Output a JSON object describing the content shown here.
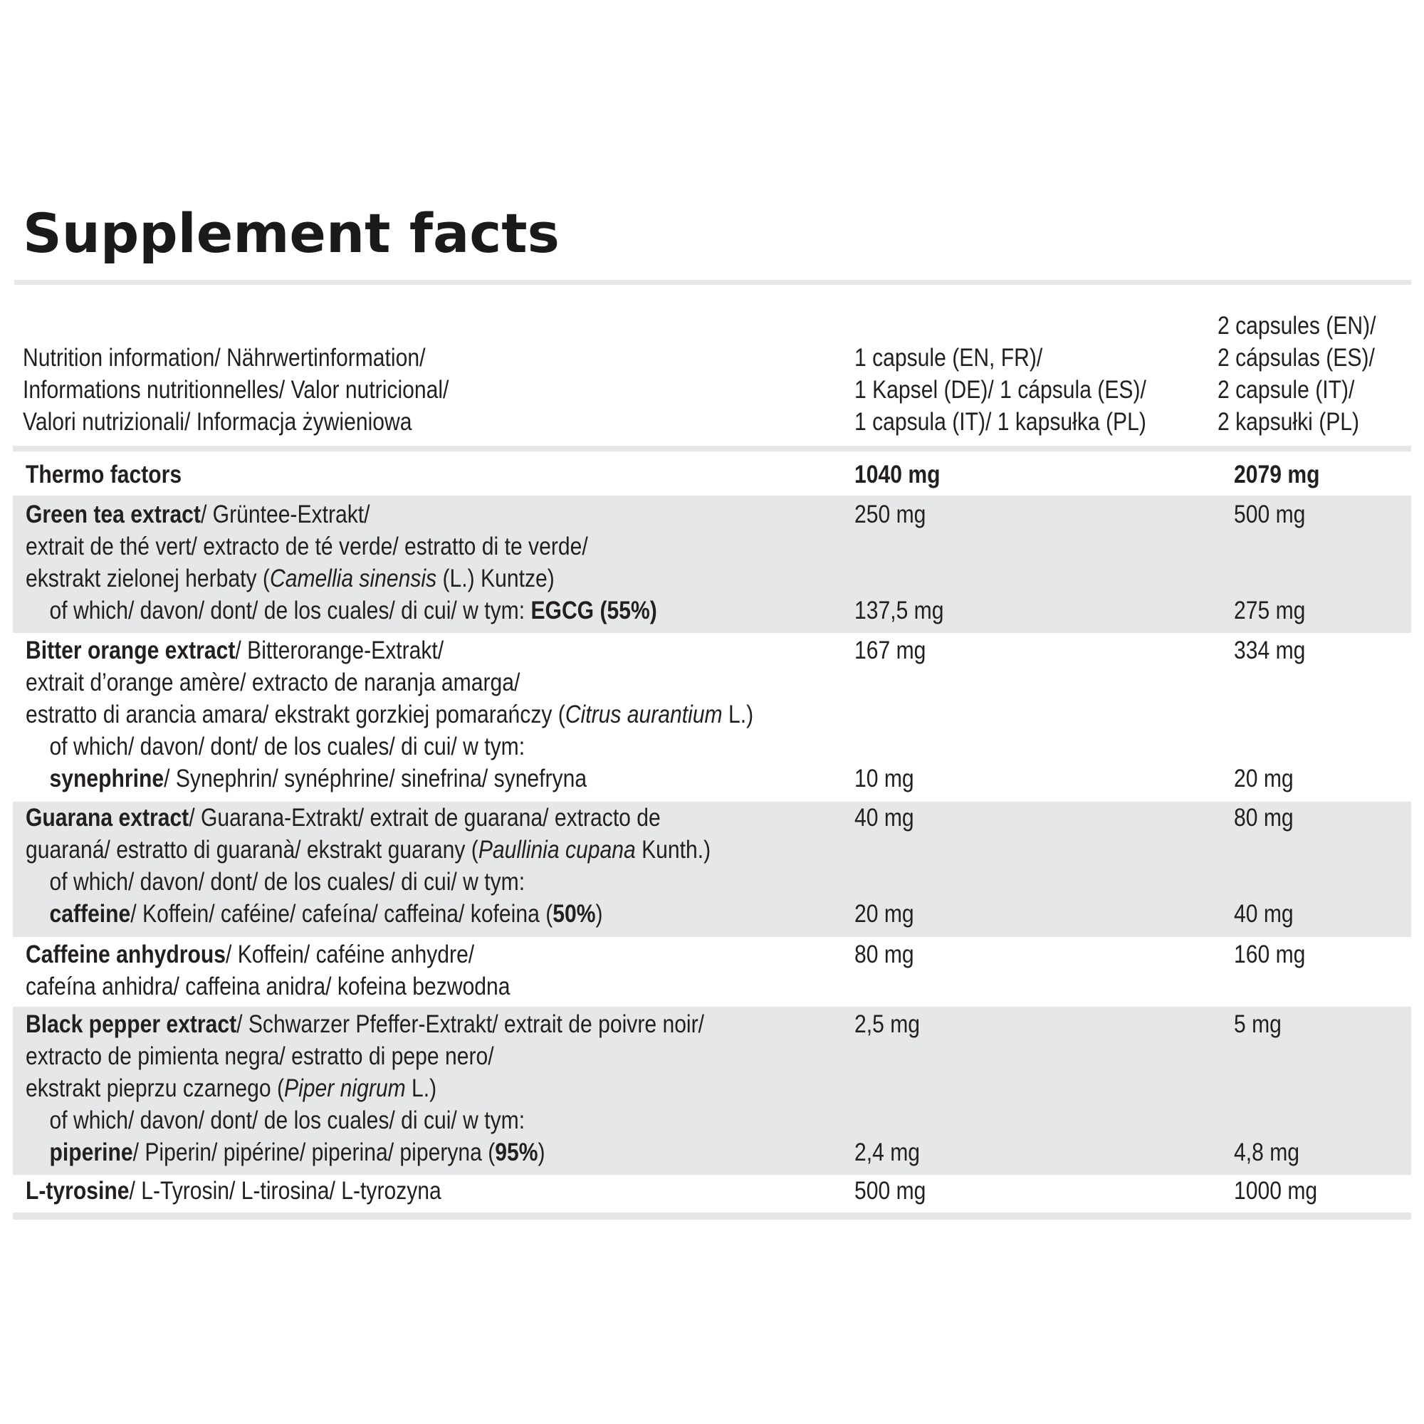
{
  "title": "Supplement facts",
  "header": {
    "label_lines": [
      "Nutrition information/ Nährwertinformation/",
      "Informations nutritionnelles/ Valor nutricional/",
      "Valori nutrizionali/ Informacja żywieniowa"
    ],
    "col1_lines": [
      "1 capsule (EN, FR)/",
      "1 Kapsel (DE)/ 1 cápsula (ES)/",
      "1 capsula (IT)/ 1 kapsułka (PL)"
    ],
    "col2_lines": [
      "2 capsules (EN)/",
      "2 cápsulas (ES)/",
      "2 capsule (IT)/",
      "2 kapsułki (PL)"
    ]
  },
  "rows": {
    "thermo": {
      "name": "Thermo factors",
      "v1": "1040 mg",
      "v2": "2079 mg"
    },
    "green_tea": {
      "name": "Green tea extract",
      "l1": "/ Grüntee-Extrakt/",
      "l2": "extrait de thé vert/ extracto de té verde/ estratto di te verde/",
      "l3_pre": "ekstrakt zielonej herbaty (",
      "l3_latin": "Camellia sinensis",
      "l3_post": " (L.) Kuntze)",
      "sub_pre": "of which/ davon/ dont/ de los cuales/ di cui/ w tym: ",
      "sub_bold": "EGCG (55%)",
      "v1": "250 mg",
      "v2": "500 mg",
      "sub_v1": "137,5 mg",
      "sub_v2": "275 mg"
    },
    "bitter_orange": {
      "name": "Bitter orange extract",
      "l1": "/ Bitterorange-Extrakt/",
      "l2": "extrait d’orange amère/ extracto de naranja amarga/",
      "l3_pre": "estratto di arancia amara/ ekstrakt gorzkiej pomarańczy (",
      "l3_latin": "Citrus aurantium",
      "l3_post": " L.)",
      "sub_line": "of which/ davon/ dont/ de los cuales/ di cui/ w tym:",
      "sub_bold": "synephrine",
      "sub_rest": "/ Synephrin/ synéphrine/ sinefrina/ synefryna",
      "v1": "167 mg",
      "v2": "334 mg",
      "sub_v1": "10 mg",
      "sub_v2": "20 mg"
    },
    "guarana": {
      "name": "Guarana extract",
      "l1": "/ Guarana-Extrakt/ extrait de guarana/ extracto de",
      "l2_pre": "guaraná/ estratto di guaranà/ ekstrakt guarany (",
      "l2_latin": "Paullinia cupana",
      "l2_post": " Kunth.)",
      "sub_line": "of which/ davon/ dont/ de los cuales/ di cui/ w tym:",
      "sub_bold": "caffeine",
      "sub_rest": "/ Koffein/ caféine/ cafeína/ caffeina/ kofeina (",
      "sub_pct": "50%",
      "sub_close": ")",
      "v1": "40 mg",
      "v2": "80 mg",
      "sub_v1": "20 mg",
      "sub_v2": "40 mg"
    },
    "caffeine": {
      "name": "Caffeine anhydrous",
      "l1": "/ Koffein/ caféine anhydre/",
      "l2": "cafeína anhidra/ caffeina anidra/ kofeina bezwodna",
      "v1": "80 mg",
      "v2": "160 mg"
    },
    "black_pepper": {
      "name": "Black pepper extract",
      "l1": "/ Schwarzer Pfeffer-Extrakt/ extrait de poivre noir/",
      "l2": "extracto de pimienta negra/ estratto di pepe nero/",
      "l3_pre": "ekstrakt pieprzu czarnego (",
      "l3_latin": "Piper nigrum",
      "l3_post": " L.)",
      "sub_line": "of which/ davon/ dont/ de los cuales/ di cui/ w tym:",
      "sub_bold": "piperine",
      "sub_rest": "/ Piperin/ pipérine/ piperina/ piperyna (",
      "sub_pct": "95%",
      "sub_close": ")",
      "v1": "2,5 mg",
      "v2": "5 mg",
      "sub_v1": "2,4 mg",
      "sub_v2": "4,8 mg"
    },
    "tyrosine": {
      "name": "L-tyrosine",
      "l1": "/ L-Tyrosin/ L-tirosina/ L-tyrozyna",
      "v1": "500 mg",
      "v2": "1000 mg"
    }
  }
}
